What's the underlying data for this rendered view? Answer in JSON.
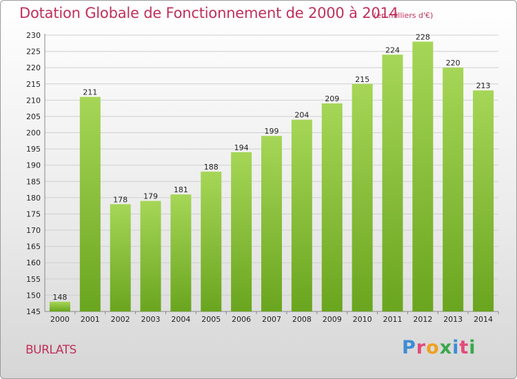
{
  "chart_data": {
    "type": "bar",
    "title": "Dotation Globale de Fonctionnement de 2000 à 2014",
    "subtitle": "(en milliers d'€)",
    "categories": [
      "2000",
      "2001",
      "2002",
      "2003",
      "2004",
      "2005",
      "2006",
      "2007",
      "2008",
      "2009",
      "2010",
      "2011",
      "2012",
      "2013",
      "2014"
    ],
    "values": [
      148,
      211,
      178,
      179,
      181,
      188,
      194,
      199,
      204,
      209,
      215,
      224,
      228,
      220,
      213
    ],
    "xlabel": "",
    "ylabel": "",
    "ylim": [
      145,
      230
    ],
    "yticks": [
      145,
      150,
      155,
      160,
      165,
      170,
      175,
      180,
      185,
      190,
      195,
      200,
      205,
      210,
      215,
      220,
      225,
      230
    ],
    "grid": true,
    "legend": "none"
  },
  "footer": {
    "commune": "BURLATS",
    "brand_letters": [
      "P",
      "r",
      "o",
      "x",
      "i",
      "t",
      "i"
    ]
  },
  "colors": {
    "bar_light": "#a6d657",
    "bar_dark": "#6aa51f",
    "title": "#c0305a",
    "brand": [
      "#3c8dd6",
      "#e34a7a",
      "#f0a020",
      "#3aa84a",
      "#3c8dd6",
      "#e34a7a",
      "#3aa84a"
    ]
  }
}
